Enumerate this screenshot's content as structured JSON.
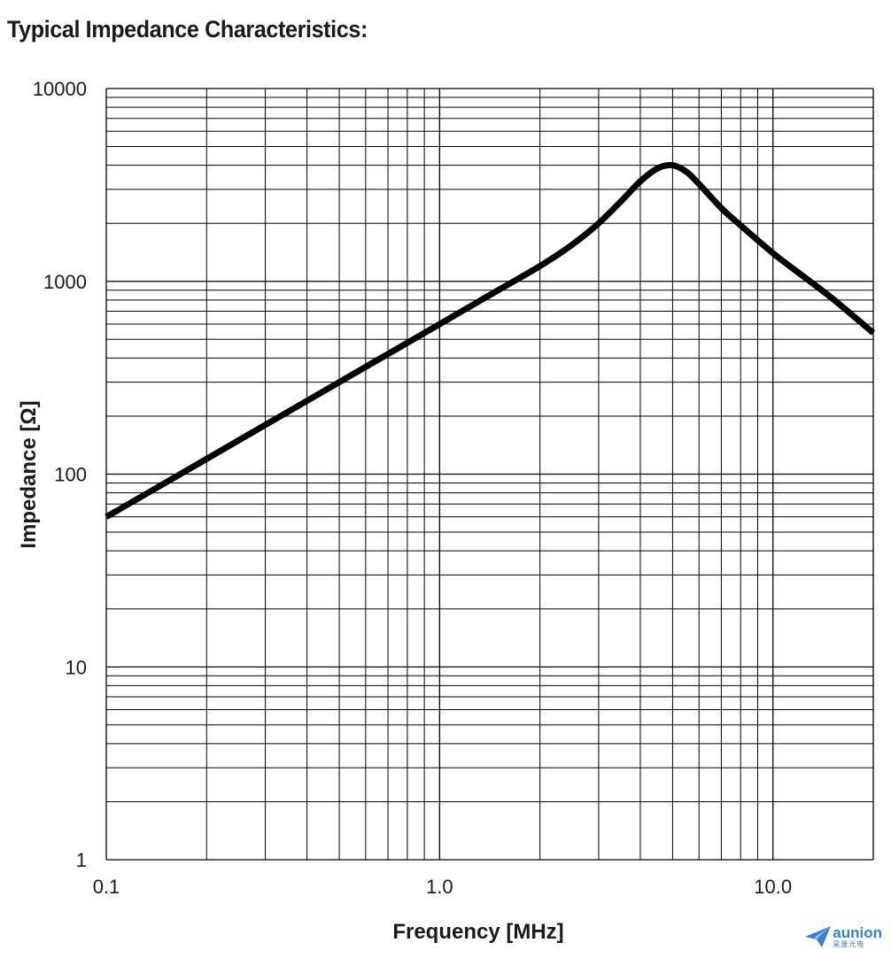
{
  "title": "Typical Impedance Characteristics:",
  "chart_data": {
    "type": "line",
    "title": "Typical Impedance Characteristics:",
    "xlabel": "Frequency [MHz]",
    "ylabel": "Impedance [Ω]",
    "x_scale": "log",
    "y_scale": "log",
    "xlim": [
      0.1,
      20
    ],
    "ylim": [
      1,
      10000
    ],
    "x_ticks": [
      0.1,
      1.0,
      10.0
    ],
    "x_tick_labels": [
      "0.1",
      "1.0",
      "10.0"
    ],
    "y_ticks": [
      1,
      10,
      100,
      1000,
      10000
    ],
    "y_tick_labels": [
      "1",
      "10",
      "100",
      "1000",
      "10000"
    ],
    "grid": true,
    "series": [
      {
        "x": [
          0.1,
          0.2,
          0.3,
          0.5,
          0.7,
          1.0,
          1.5,
          2.0,
          2.5,
          3.0,
          3.5,
          4.0,
          4.5,
          5.0,
          5.5,
          6.0,
          7.0,
          8.0,
          10.0,
          12.0,
          15.0,
          20.0
        ],
        "y": [
          60,
          120,
          180,
          300,
          420,
          600,
          900,
          1200,
          1550,
          2000,
          2600,
          3300,
          3850,
          4000,
          3700,
          3200,
          2400,
          1950,
          1400,
          1100,
          820,
          540
        ]
      }
    ]
  },
  "watermark": {
    "word": "aunion",
    "sub": "昊量光电",
    "color": "#3b7fc4"
  }
}
